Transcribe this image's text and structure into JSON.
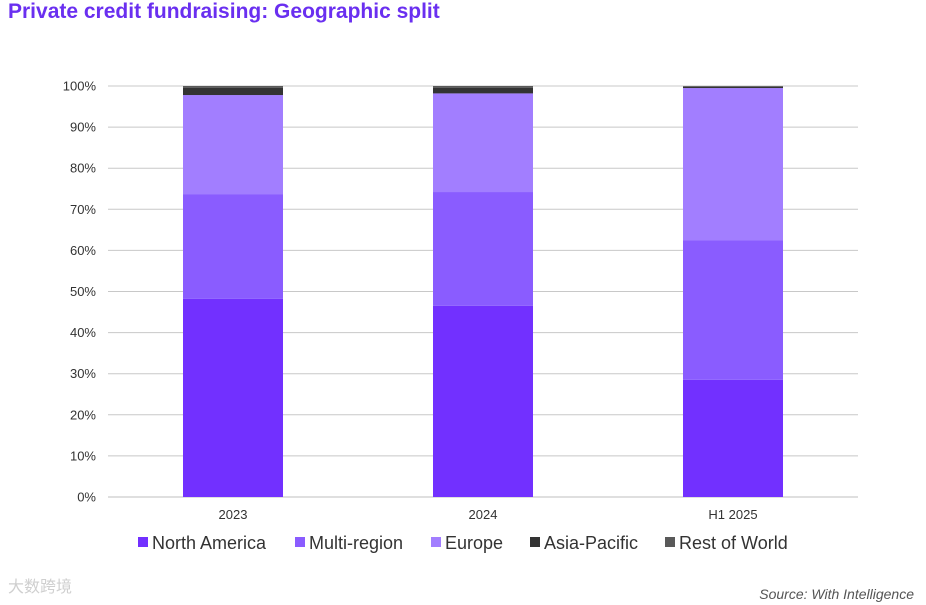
{
  "title": "Private credit fundraising: Geographic split",
  "source": "Source: With Intelligence",
  "watermark": "大数跨境",
  "chart_data": {
    "type": "bar",
    "stacked": true,
    "categories": [
      "2023",
      "2024",
      "H1 2025"
    ],
    "series": [
      {
        "name": "North America",
        "color": "#7230ff",
        "values": [
          48.2,
          46.5,
          28.5
        ]
      },
      {
        "name": "Multi-region",
        "color": "#8a5cff",
        "values": [
          25.5,
          27.7,
          34.0
        ]
      },
      {
        "name": "Europe",
        "color": "#a27eff",
        "values": [
          24.1,
          24.0,
          37.0
        ]
      },
      {
        "name": "Asia-Pacific",
        "color": "#333333",
        "values": [
          1.8,
          1.4,
          0.3
        ]
      },
      {
        "name": "Rest of World",
        "color": "#595959",
        "values": [
          0.4,
          0.4,
          0.2
        ]
      }
    ],
    "y_ticks": [
      "0%",
      "10%",
      "20%",
      "30%",
      "40%",
      "50%",
      "60%",
      "70%",
      "80%",
      "90%",
      "100%"
    ],
    "ylim": [
      0,
      100
    ],
    "grid": true,
    "legend_position": "bottom"
  }
}
